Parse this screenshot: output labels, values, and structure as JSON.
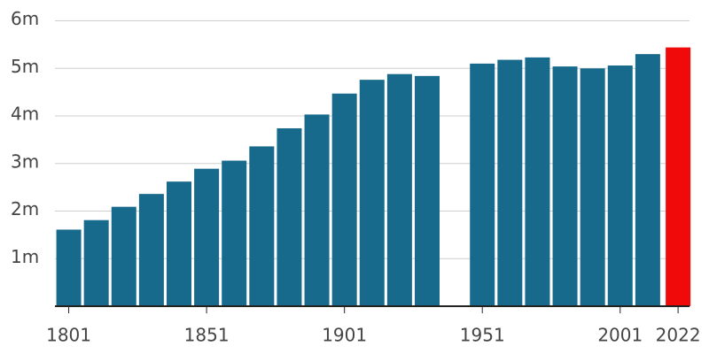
{
  "chart_data": {
    "type": "bar",
    "x": [
      1801,
      1811,
      1821,
      1831,
      1841,
      1851,
      1861,
      1871,
      1881,
      1891,
      1901,
      1911,
      1921,
      1931,
      1951,
      1961,
      1971,
      1981,
      1991,
      2001,
      2011,
      2022
    ],
    "values": [
      1.61,
      1.81,
      2.09,
      2.36,
      2.62,
      2.89,
      3.06,
      3.36,
      3.74,
      4.03,
      4.47,
      4.76,
      4.88,
      4.84,
      5.1,
      5.18,
      5.23,
      5.04,
      5.0,
      5.06,
      5.3,
      5.44
    ],
    "colors": [
      "#176a8c",
      "#176a8c",
      "#176a8c",
      "#176a8c",
      "#176a8c",
      "#176a8c",
      "#176a8c",
      "#176a8c",
      "#176a8c",
      "#176a8c",
      "#176a8c",
      "#176a8c",
      "#176a8c",
      "#176a8c",
      "#176a8c",
      "#176a8c",
      "#176a8c",
      "#176a8c",
      "#176a8c",
      "#176a8c",
      "#176a8c",
      "#f00a0a"
    ],
    "xlim": [
      1796,
      2030
    ],
    "xticks": [
      1801,
      1851,
      1901,
      1951,
      2001,
      2022
    ],
    "ylim": [
      0,
      6.4
    ],
    "yticks": [
      {
        "value": 1,
        "label": "1m"
      },
      {
        "value": 2,
        "label": "2m"
      },
      {
        "value": 3,
        "label": "3m"
      },
      {
        "value": 4,
        "label": "4m"
      },
      {
        "value": 5,
        "label": "5m"
      },
      {
        "value": 6,
        "label": "6m"
      }
    ],
    "grid": true
  }
}
